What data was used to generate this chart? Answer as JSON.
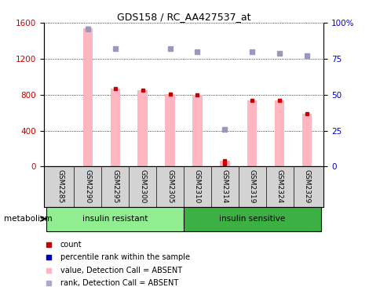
{
  "title": "GDS158 / RC_AA427537_at",
  "samples": [
    "GSM2285",
    "GSM2290",
    "GSM2295",
    "GSM2300",
    "GSM2305",
    "GSM2310",
    "GSM2314",
    "GSM2319",
    "GSM2324",
    "GSM2329"
  ],
  "bar_values": [
    0,
    1540,
    870,
    850,
    810,
    800,
    60,
    740,
    740,
    590
  ],
  "rank_values": [
    null,
    null,
    null,
    null,
    null,
    null,
    26,
    null,
    null,
    null
  ],
  "blue_dot_values": [
    null,
    96,
    82,
    null,
    82,
    80,
    26,
    80,
    79,
    77
  ],
  "group1_label": "insulin resistant",
  "group2_label": "insulin sensitive",
  "group1_color": "#90ee90",
  "group2_color": "#3cb043",
  "metabolism_label": "metabolism",
  "ylim_left": [
    0,
    1600
  ],
  "ylim_right": [
    0,
    100
  ],
  "yticks_left": [
    0,
    400,
    800,
    1200,
    1600
  ],
  "yticks_right": [
    0,
    25,
    50,
    75,
    100
  ],
  "yticklabels_right": [
    "0",
    "25",
    "50",
    "75",
    "100%"
  ],
  "bar_color": "#ffb6c1",
  "rank_dot_color": "#cc0000",
  "blue_dot_color": "#9999bb",
  "grid_linestyle": "dotted",
  "tick_label_color_left": "#cc0000",
  "tick_label_color_right": "#0000cc",
  "sample_bg_color": "#d3d3d3",
  "legend_items": [
    {
      "label": "count",
      "color": "#cc0000"
    },
    {
      "label": "percentile rank within the sample",
      "color": "#0000cc"
    },
    {
      "label": "value, Detection Call = ABSENT",
      "color": "#ffb6c1"
    },
    {
      "label": "rank, Detection Call = ABSENT",
      "color": "#aaaacc"
    }
  ]
}
